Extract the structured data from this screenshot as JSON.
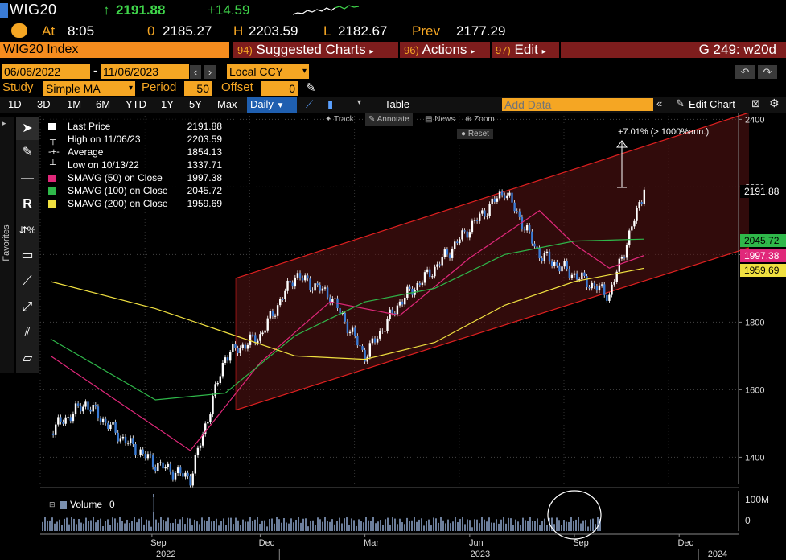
{
  "quote": {
    "ticker": "WIG20",
    "arrow": "↑",
    "last": "2191.88",
    "change": "+14.59",
    "at_label": "At",
    "time": "8:05",
    "open_label": "0",
    "open": "2185.27",
    "high_label": "H",
    "high": "2203.59",
    "low_label": "L",
    "low": "2182.67",
    "prev_label": "Prev",
    "prev": "2177.29"
  },
  "menu": {
    "security": "WIG20 Index",
    "suggested_num": "94)",
    "suggested": "Suggested Charts",
    "actions_num": "96)",
    "actions": "Actions",
    "edit_num": "97)",
    "edit": "Edit",
    "page_id": "G 249: w20d"
  },
  "range": {
    "start": "06/06/2022",
    "sep": "-",
    "end": "11/06/2023",
    "currency": "Local CCY"
  },
  "study": {
    "study_label": "Study",
    "study_value": "Simple MA",
    "period_label": "Period",
    "period_value": "50",
    "offset_label": "Offset",
    "offset_value": "0"
  },
  "periods": [
    "1D",
    "3D",
    "1M",
    "6M",
    "YTD",
    "1Y",
    "5Y",
    "Max"
  ],
  "frequency": "Daily",
  "table_label": "Table",
  "add_data_placeholder": "Add Data",
  "edit_chart": "Edit Chart",
  "favorites_label": "Favorites",
  "mini_tools": {
    "track": "Track",
    "annotate": "Annotate",
    "news": "News",
    "zoom": "Zoom",
    "reset": "Reset"
  },
  "legend": [
    {
      "name": "Last Price",
      "value": "2191.88",
      "color": "#ffffff"
    },
    {
      "name": "High on 11/06/23",
      "value": "2203.59",
      "color": "#ffffff"
    },
    {
      "name": "Average",
      "value": "1854.13",
      "color": "#ffffff"
    },
    {
      "name": "Low on 10/13/22",
      "value": "1337.71",
      "color": "#ffffff"
    },
    {
      "name": "SMAVG (50)  on Close",
      "value": "1997.38",
      "color": "#e0287a"
    },
    {
      "name": "SMAVG (100)  on Close",
      "value": "2045.72",
      "color": "#2fb84a"
    },
    {
      "name": "SMAVG (200)  on Close",
      "value": "1959.69",
      "color": "#f0e040"
    }
  ],
  "annotation": "+7.01% (> 1000%ann.)",
  "volume_label": "Volume",
  "volume_value": "0",
  "price_tags": [
    {
      "value": "2191.88",
      "bg": "#000000",
      "fg": "#ffffff"
    },
    {
      "value": "2045.72",
      "bg": "#2fb84a",
      "fg": "#000000"
    },
    {
      "value": "1997.38",
      "bg": "#e0287a",
      "fg": "#ffffff"
    },
    {
      "value": "1959.69",
      "bg": "#f0e040",
      "fg": "#000000"
    }
  ],
  "volume_axis": [
    "100M",
    "0"
  ],
  "chart_data": {
    "type": "line",
    "title": "WIG20 Index",
    "y_axis": {
      "ticks": [
        1400,
        1600,
        1800,
        2000,
        2200,
        2400
      ],
      "range": [
        1320,
        2420
      ]
    },
    "x_axis": {
      "month_labels": [
        "Sep",
        "Dec",
        "Mar",
        "Jun",
        "Sep",
        "Dec"
      ],
      "year_labels": [
        "2022",
        "2023",
        "2024"
      ]
    },
    "series": [
      {
        "name": "Last Price",
        "color": "#3a7bd5",
        "x": [
          "2022-06",
          "2022-07",
          "2022-08",
          "2022-09",
          "2022-10",
          "2022-11",
          "2022-12",
          "2023-01",
          "2023-02",
          "2023-03",
          "2023-04",
          "2023-05",
          "2023-06",
          "2023-07",
          "2023-08",
          "2023-09",
          "2023-10",
          "2023-11"
        ],
        "values": [
          1480,
          1560,
          1460,
          1380,
          1337.71,
          1700,
          1760,
          1940,
          1880,
          1700,
          1860,
          1960,
          2080,
          2190,
          2000,
          1940,
          1880,
          2191.88
        ]
      },
      {
        "name": "SMAVG (50)  on Close",
        "color": "#e0287a",
        "x": [
          "2022-06",
          "2022-08",
          "2022-10",
          "2022-12",
          "2023-02",
          "2023-04",
          "2023-06",
          "2023-08",
          "2023-09",
          "2023-10",
          "2023-11"
        ],
        "values": [
          1700,
          1560,
          1420,
          1680,
          1860,
          1820,
          1990,
          2130,
          2030,
          1960,
          1997.38
        ]
      },
      {
        "name": "SMAVG (100)  on Close",
        "color": "#2fb84a",
        "x": [
          "2022-06",
          "2022-09",
          "2022-11",
          "2023-01",
          "2023-03",
          "2023-05",
          "2023-07",
          "2023-09",
          "2023-11"
        ],
        "values": [
          1750,
          1570,
          1590,
          1760,
          1860,
          1900,
          2000,
          2040,
          2045.72
        ]
      },
      {
        "name": "SMAVG (200)  on Close",
        "color": "#f0e040",
        "x": [
          "2022-06",
          "2022-09",
          "2022-11",
          "2023-01",
          "2023-03",
          "2023-05",
          "2023-07",
          "2023-09",
          "2023-11"
        ],
        "values": [
          1920,
          1840,
          1770,
          1700,
          1690,
          1740,
          1850,
          1920,
          1959.69
        ]
      }
    ],
    "channel": {
      "lower": [
        [
          1,
          1540
        ],
        [
          20,
          2020
        ]
      ],
      "upper": [
        [
          1,
          1930
        ],
        [
          20,
          2420
        ]
      ]
    },
    "legend": "top-left",
    "grid": false
  }
}
